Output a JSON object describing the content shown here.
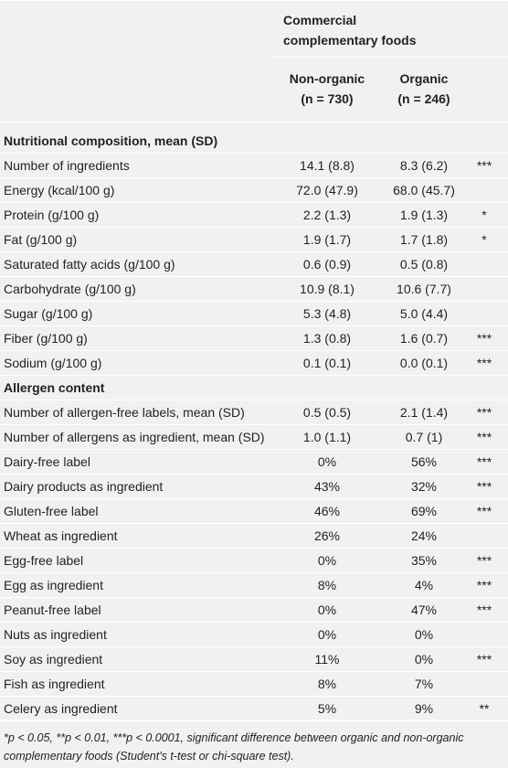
{
  "table": {
    "group_header": [
      "Commercial",
      "complementary foods"
    ],
    "columns": [
      {
        "name": "Non-organic",
        "n": "(n = 730)"
      },
      {
        "name": "Organic",
        "n": "(n = 246)"
      }
    ],
    "sections": [
      {
        "title": "Nutritional composition, mean (SD)",
        "rows": [
          [
            "Number of ingredients",
            "14.1 (8.8)",
            "8.3 (6.2)",
            "***"
          ],
          [
            "Energy (kcal/100 g)",
            "72.0 (47.9)",
            "68.0 (45.7)"
          ],
          [
            "Protein (g/100 g)",
            "2.2 (1.3)",
            "1.9 (1.3)",
            "*"
          ],
          [
            "Fat (g/100 g)",
            "1.9 (1.7)",
            "1.7 (1.8)",
            "*"
          ],
          [
            "Saturated fatty acids (g/100 g)",
            "0.6 (0.9)",
            "0.5 (0.8)"
          ],
          [
            "Carbohydrate (g/100 g)",
            "10.9 (8.1)",
            "10.6 (7.7)"
          ],
          [
            "Sugar (g/100 g)",
            "5.3 (4.8)",
            "5.0 (4.4)"
          ],
          [
            "Fiber (g/100 g)",
            "1.3 (0.8)",
            "1.6 (0.7)",
            "***"
          ],
          [
            "Sodium (g/100 g)",
            "0.1 (0.1)",
            "0.0 (0.1)",
            "***"
          ]
        ]
      },
      {
        "title": "Allergen content",
        "rows": [
          [
            "Number of allergen-free labels, mean (SD)",
            "0.5 (0.5)",
            "2.1 (1.4)",
            "***"
          ],
          [
            "Number of allergens as ingredient, mean (SD)",
            "1.0 (1.1)",
            "0.7 (1)",
            "***"
          ],
          [
            "Dairy-free label",
            "0%",
            "56%",
            "***"
          ],
          [
            "Dairy products as ingredient",
            "43%",
            "32%",
            "***"
          ],
          [
            "Gluten-free label",
            "46%",
            "69%",
            "***"
          ],
          [
            "Wheat as ingredient",
            "26%",
            "24%"
          ],
          [
            "Egg-free label",
            "0%",
            "35%",
            "***"
          ],
          [
            "Egg as ingredient",
            "8%",
            "4%",
            "***"
          ],
          [
            "Peanut-free label",
            "0%",
            "47%",
            "***"
          ],
          [
            "Nuts as ingredient",
            "0%",
            "0%"
          ],
          [
            "Soy as ingredient",
            "11%",
            "0%",
            "***"
          ],
          [
            "Fish as ingredient",
            "8%",
            "7%"
          ],
          [
            "Celery as ingredient",
            "5%",
            "9%",
            "**"
          ]
        ]
      }
    ],
    "footnote": "*p < 0.05, **p < 0.01, ***p < 0.0001, significant difference between organic and non-organic complementary foods (Student's t-test or chi-square test)."
  }
}
